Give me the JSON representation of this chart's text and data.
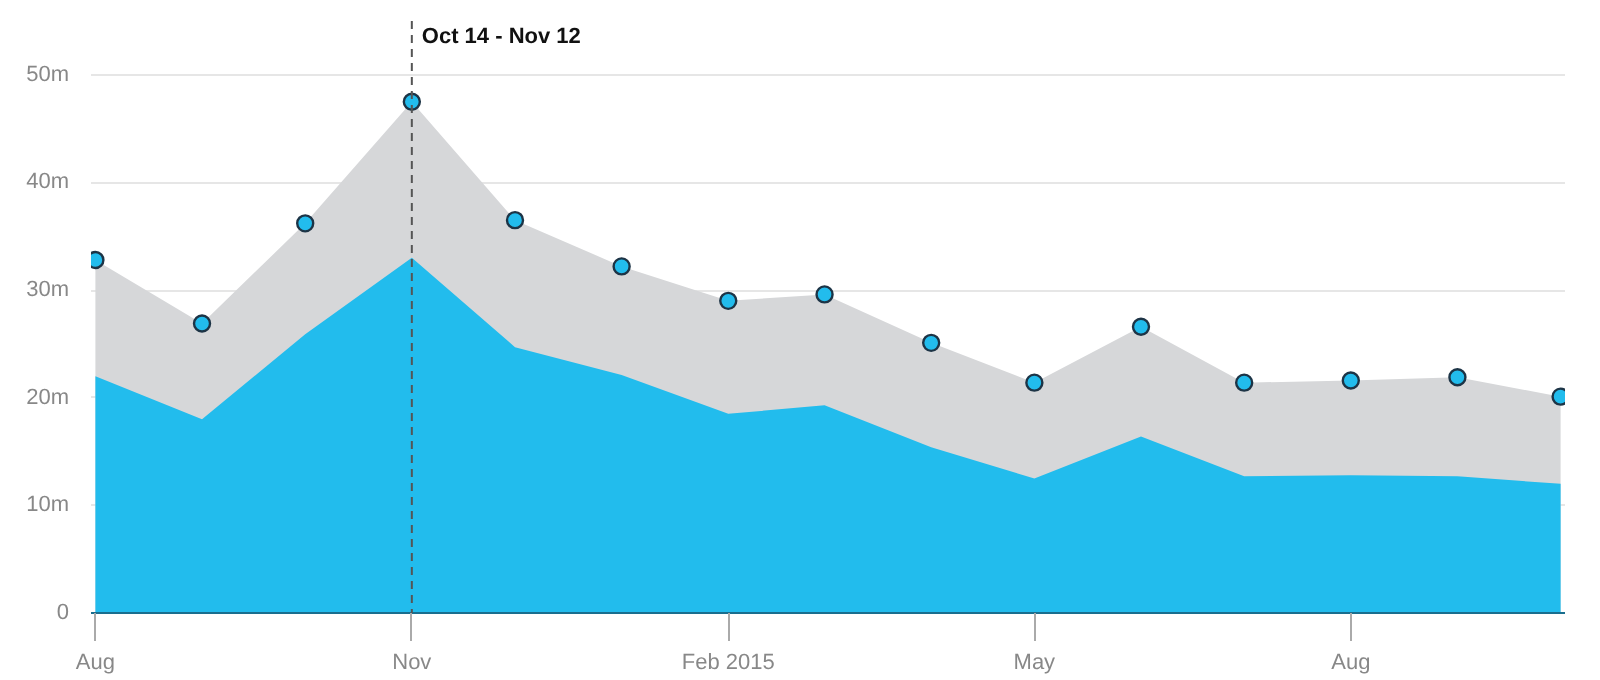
{
  "chart_data": {
    "type": "area",
    "x": [
      "2014-08",
      "2014-09",
      "2014-10",
      "2014-11",
      "2014-12",
      "2015-01",
      "2015-02",
      "2015-03",
      "2015-04",
      "2015-05",
      "2015-06",
      "2015-07",
      "2015-08",
      "2015-09",
      "2015-10"
    ],
    "series": [
      {
        "color": "#d6d7d9",
        "marker": "circle",
        "values": [
          32.8,
          26.9,
          36.2,
          47.5,
          36.5,
          32.2,
          29.0,
          29.6,
          25.1,
          21.4,
          26.6,
          21.4,
          21.6,
          21.9,
          20.1
        ]
      },
      {
        "color": "#22bced",
        "marker": "none",
        "values": [
          22.0,
          18.0,
          25.9,
          33.0,
          24.7,
          22.1,
          18.5,
          19.3,
          15.4,
          12.5,
          16.4,
          12.7,
          12.8,
          12.7,
          12.0
        ]
      }
    ],
    "xlim": [
      "2014-08",
      "2015-10"
    ],
    "xticks": [
      {
        "value": "2014-08",
        "label": "Aug"
      },
      {
        "value": "2014-11",
        "label": "Nov"
      },
      {
        "value": "2015-02",
        "label": "Feb 2015"
      },
      {
        "value": "2015-05",
        "label": "May"
      },
      {
        "value": "2015-08",
        "label": "Aug"
      }
    ],
    "ylim": [
      0,
      55
    ],
    "yticks": [
      0,
      {
        "value": 10,
        "label": "10m"
      },
      {
        "value": 20,
        "label": "20m"
      },
      {
        "value": 30,
        "label": "30m"
      },
      {
        "value": 40,
        "label": "40m"
      },
      {
        "value": 50,
        "label": "50m"
      }
    ],
    "ref_lines": [
      {
        "axis": "x",
        "value": "2014-11",
        "label": "Oct 14 - Nov 12",
        "line_style": "dashed",
        "color": "#555555"
      }
    ],
    "grid": "y"
  }
}
